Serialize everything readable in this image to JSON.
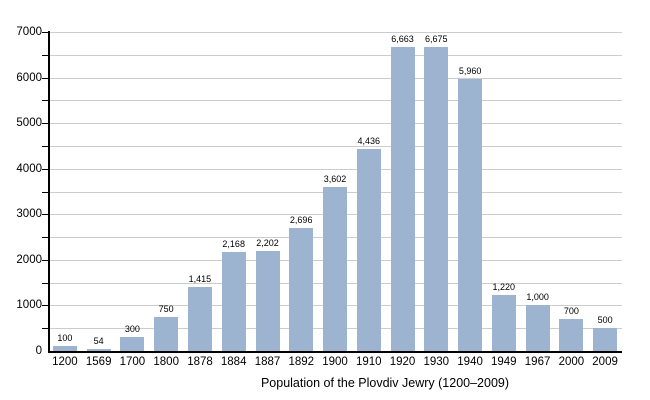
{
  "chart_data": {
    "type": "bar",
    "title": "Population of the Plovdiv Jewry (1200–2009)",
    "xlabel": "",
    "ylabel": "",
    "categories": [
      "1200",
      "1569",
      "1700",
      "1800",
      "1878",
      "1884",
      "1887",
      "1892",
      "1900",
      "1910",
      "1920",
      "1930",
      "1940",
      "1949",
      "1967",
      "2000",
      "2009"
    ],
    "values": [
      100,
      54,
      300,
      750,
      1415,
      2168,
      2202,
      2696,
      3602,
      4436,
      6663,
      6675,
      5960,
      1220,
      1000,
      700,
      500
    ],
    "value_labels": [
      "100",
      "54",
      "300",
      "750",
      "1,415",
      "2,168",
      "2,202",
      "2,696",
      "3,602",
      "4,436",
      "6,663",
      "6,675",
      "5,960",
      "1,220",
      "1,000",
      "700",
      "500"
    ],
    "ylim": [
      0,
      7000
    ],
    "yticks": [
      0,
      1000,
      2000,
      3000,
      4000,
      5000,
      6000,
      7000
    ],
    "ytick_labels": [
      "0",
      "1000",
      "2000",
      "3000",
      "4000",
      "5000",
      "6000",
      "7000"
    ],
    "grid": true,
    "grid_interval": 500,
    "legend": false,
    "colors": {
      "bar": "#9db4d1",
      "grid": "#cccccc",
      "axis": "#000000",
      "text": "#000000"
    }
  }
}
